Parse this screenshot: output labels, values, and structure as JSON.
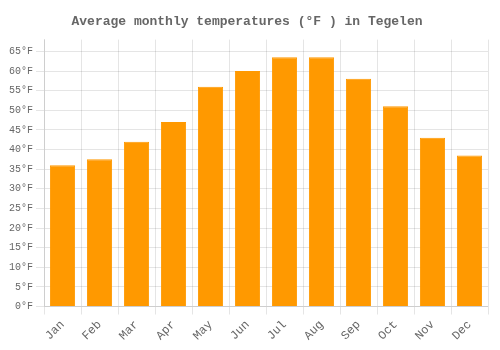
{
  "chart_data": {
    "type": "bar",
    "title": "Average monthly temperatures (°F ) in Tegelen",
    "categories": [
      "Jan",
      "Feb",
      "Mar",
      "Apr",
      "May",
      "Jun",
      "Jul",
      "Aug",
      "Sep",
      "Oct",
      "Nov",
      "Dec"
    ],
    "values": [
      36,
      37.5,
      42,
      47,
      56,
      60,
      63.5,
      63.5,
      58,
      51,
      43,
      38.5
    ],
    "color": "#FF9900",
    "ylim": [
      0,
      68
    ],
    "yticks": [
      {
        "value": 0,
        "label": "0°F"
      },
      {
        "value": 5,
        "label": "5°F"
      },
      {
        "value": 10,
        "label": "10°F"
      },
      {
        "value": 15,
        "label": "15°F"
      },
      {
        "value": 20,
        "label": "20°F"
      },
      {
        "value": 25,
        "label": "25°F"
      },
      {
        "value": 30,
        "label": "30°F"
      },
      {
        "value": 35,
        "label": "35°F"
      },
      {
        "value": 40,
        "label": "40°F"
      },
      {
        "value": 45,
        "label": "45°F"
      },
      {
        "value": 50,
        "label": "50°F"
      },
      {
        "value": 55,
        "label": "55°F"
      },
      {
        "value": 60,
        "label": "60°F"
      },
      {
        "value": 65,
        "label": "65°F"
      }
    ],
    "grid": true
  }
}
